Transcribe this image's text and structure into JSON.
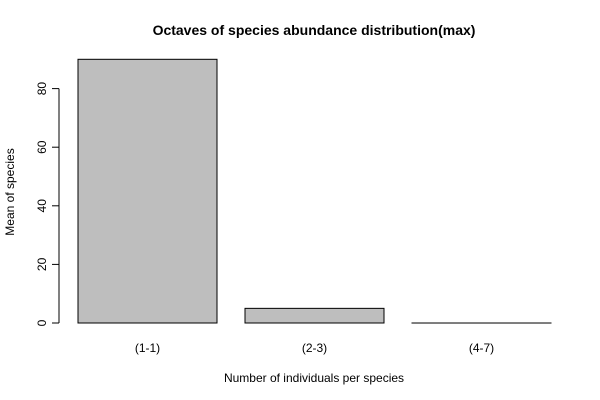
{
  "chart_data": {
    "type": "bar",
    "title": "Octaves of species abundance distribution(max)",
    "xlabel": "Number of individuals per species",
    "ylabel": "Mean of species",
    "categories": [
      "(1-1)",
      "(2-3)",
      "(4-7)"
    ],
    "values": [
      90,
      5,
      0
    ],
    "ylim": [
      0,
      90
    ],
    "yticks": [
      0,
      20,
      40,
      60,
      80
    ],
    "grid": false,
    "bar_color": "#bebebe",
    "border_color": "#000000"
  }
}
